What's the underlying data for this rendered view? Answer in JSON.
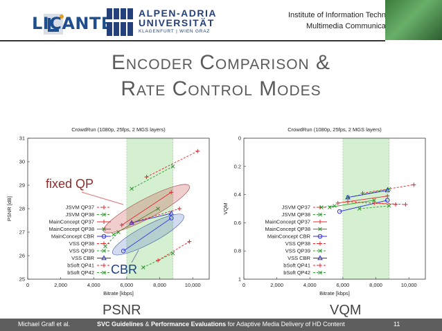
{
  "header": {
    "logo_left": "LICANTE",
    "university_line1": "ALPEN-ADRIA",
    "university_line2": "UNIVERSITÄT",
    "university_sub": "KLAGENFURT | WIEN GRAZ",
    "institute_line1": "Institute of Information Technology",
    "institute_line2": "Multimedia Communication"
  },
  "slide": {
    "title_line1": "Encoder Comparison &",
    "title_line2": "Rate Control Modes",
    "annotation_fixed_qp": "fixed QP",
    "annotation_cbr": "CBR",
    "label_psnr": "PSNR",
    "label_vqm": "VQM"
  },
  "footer": {
    "author": "Michael Grafl et al.",
    "title_bold_1": "SVC Guidelines",
    "title_amp": " & ",
    "title_bold_2": "Performance Evaluations",
    "title_rest": " for Adaptive Media Delivery of HD Content",
    "page": "11"
  },
  "colors": {
    "red": "#e8232a",
    "green": "#2e9b2e",
    "blue": "#2d2ddc",
    "highlight": "#d4f0d0"
  },
  "chart_data": [
    {
      "type": "line",
      "title": "CrowdRun (1080p, 25fps, 2 MGS layers)",
      "xlabel": "Bitrate [kbps]",
      "ylabel": "PSNR [dB]",
      "xlim": [
        0,
        11000
      ],
      "ylim": [
        25,
        31
      ],
      "xticks": [
        "0",
        "2,000",
        "4,000",
        "6,000",
        "8,000",
        "10,000"
      ],
      "yticks": [
        "25",
        "26",
        "27",
        "28",
        "29",
        "30",
        "31"
      ],
      "highlight_band": [
        6000,
        8800
      ],
      "series": [
        {
          "name": "JSVM QP37",
          "color": "red",
          "marker": "plus",
          "dash": true,
          "x": [
            7200,
            10300
          ],
          "y": [
            29.35,
            30.45
          ]
        },
        {
          "name": "JSVM QP38",
          "color": "green",
          "marker": "x",
          "dash": true,
          "x": [
            6300,
            8800
          ],
          "y": [
            28.85,
            29.8
          ]
        },
        {
          "name": "MainConcept QP37",
          "color": "red",
          "marker": "plus",
          "dash": false,
          "x": [
            5700,
            8700
          ],
          "y": [
            27.3,
            28.7
          ]
        },
        {
          "name": "MainConcept QP38",
          "color": "green",
          "marker": "x",
          "dash": false,
          "x": [
            5200,
            7900
          ],
          "y": [
            26.9,
            28.0
          ]
        },
        {
          "name": "MainConcept CBR",
          "color": "blue",
          "marker": "circle",
          "dash": false,
          "x": [
            5800,
            8700
          ],
          "y": [
            26.2,
            27.6
          ]
        },
        {
          "name": "VSS QP38",
          "color": "red",
          "marker": "plus",
          "dash": true,
          "x": [
            6300,
            9200
          ],
          "y": [
            27.4,
            28.0
          ]
        },
        {
          "name": "VSS QP39",
          "color": "green",
          "marker": "x",
          "dash": true,
          "x": [
            4700,
            5500
          ],
          "y": [
            26.4,
            27.0
          ]
        },
        {
          "name": "VSS CBR",
          "color": "blue",
          "marker": "triangle",
          "dash": false,
          "x": [
            6300,
            8700
          ],
          "y": [
            27.4,
            27.8
          ]
        },
        {
          "name": "bSoft QP41",
          "color": "red",
          "marker": "plus",
          "dash": true,
          "x": [
            7900,
            9800
          ],
          "y": [
            25.8,
            26.6
          ]
        },
        {
          "name": "bSoft QP42",
          "color": "green",
          "marker": "x",
          "dash": true,
          "x": [
            7000,
            8800
          ],
          "y": [
            25.5,
            26.1
          ]
        }
      ]
    },
    {
      "type": "line",
      "title": "CrowdRun (1080p, 25fps, 2 MGS layers)",
      "xlabel": "Bitrate [kbps]",
      "ylabel": "VQM",
      "xlim": [
        0,
        11000
      ],
      "ylim": [
        1,
        0
      ],
      "xticks": [
        "0",
        "2,000",
        "4,000",
        "6,000",
        "8,000",
        "10,000"
      ],
      "yticks": [
        "0",
        "0.2",
        "0.4",
        "0.6",
        "0.8",
        "1"
      ],
      "highlight_band": [
        6000,
        8800
      ],
      "series": [
        {
          "name": "JSVM QP37",
          "color": "red",
          "marker": "plus",
          "dash": true,
          "x": [
            7200,
            10300
          ],
          "y": [
            0.39,
            0.33
          ]
        },
        {
          "name": "JSVM QP38",
          "color": "green",
          "marker": "x",
          "dash": true,
          "x": [
            6300,
            8800
          ],
          "y": [
            0.42,
            0.36
          ]
        },
        {
          "name": "MainConcept QP37",
          "color": "red",
          "marker": "plus",
          "dash": false,
          "x": [
            5700,
            8700
          ],
          "y": [
            0.46,
            0.41
          ]
        },
        {
          "name": "MainConcept QP38",
          "color": "green",
          "marker": "x",
          "dash": false,
          "x": [
            5200,
            7900
          ],
          "y": [
            0.49,
            0.44
          ]
        },
        {
          "name": "MainConcept CBR",
          "color": "blue",
          "marker": "circle",
          "dash": false,
          "x": [
            5800,
            8700
          ],
          "y": [
            0.52,
            0.44
          ]
        },
        {
          "name": "VSS QP38",
          "color": "red",
          "marker": "plus",
          "dash": true,
          "x": [
            6300,
            9200
          ],
          "y": [
            0.45,
            0.47
          ]
        },
        {
          "name": "VSS QP39",
          "color": "green",
          "marker": "x",
          "dash": true,
          "x": [
            4700,
            5500
          ],
          "y": [
            0.49,
            0.48
          ]
        },
        {
          "name": "VSS CBR",
          "color": "blue",
          "marker": "triangle",
          "dash": false,
          "x": [
            6300,
            8700
          ],
          "y": [
            0.42,
            0.37
          ]
        },
        {
          "name": "bSoft QP41",
          "color": "red",
          "marker": "plus",
          "dash": true,
          "x": [
            7900,
            9800
          ],
          "y": [
            0.46,
            0.47
          ]
        },
        {
          "name": "bSoft QP42",
          "color": "green",
          "marker": "x",
          "dash": true,
          "x": [
            7000,
            8800
          ],
          "y": [
            0.5,
            0.48
          ]
        }
      ]
    }
  ]
}
